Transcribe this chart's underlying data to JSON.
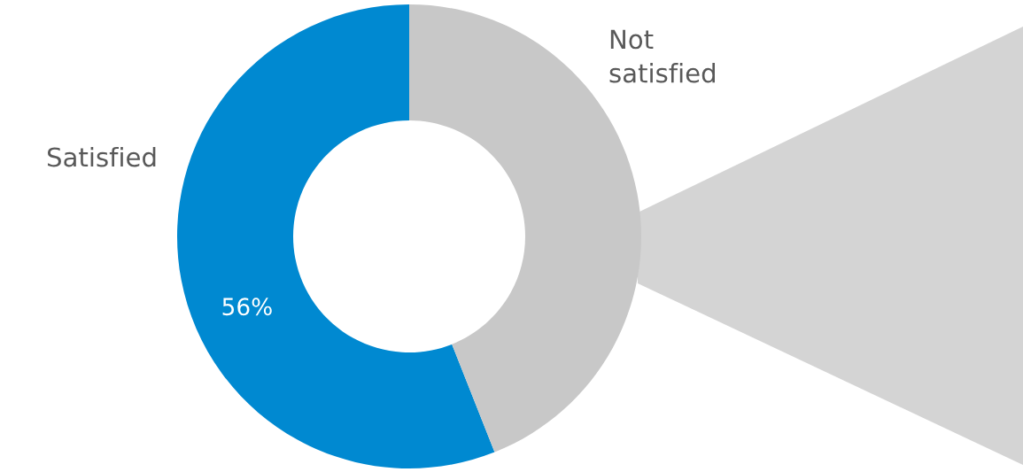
{
  "chart_data": {
    "type": "donut",
    "categories": [
      "Satisfied",
      "Not satisfied"
    ],
    "values": [
      56,
      44
    ],
    "colors": [
      "#0089d1",
      "#c8c8c8"
    ],
    "value_labels": [
      "56%",
      null
    ]
  }
}
